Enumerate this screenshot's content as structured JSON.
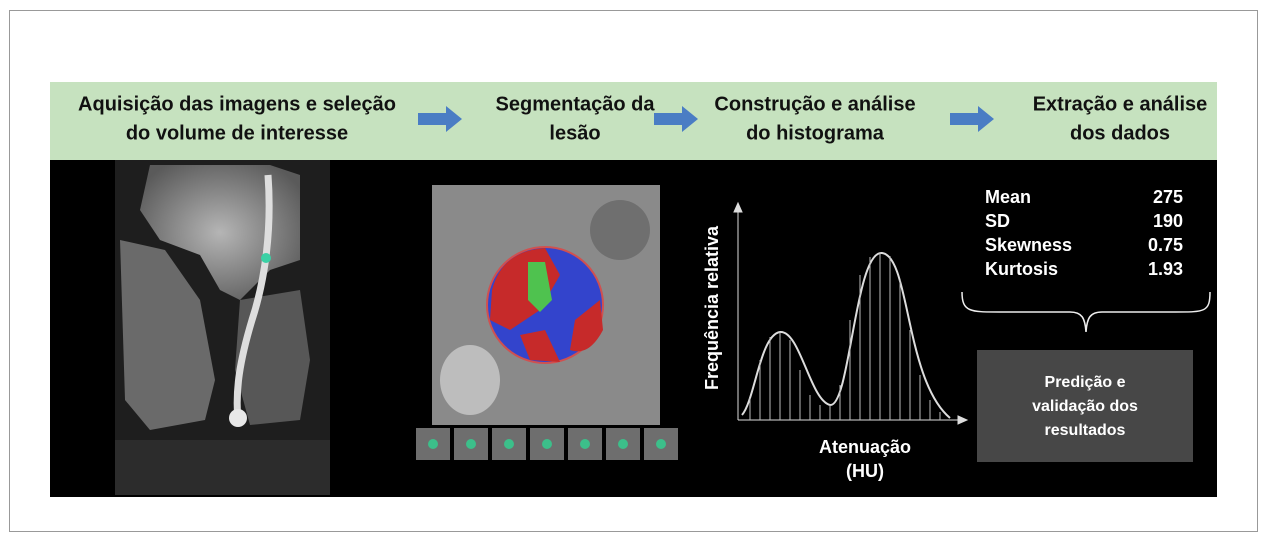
{
  "steps": [
    {
      "lines": [
        "Aquisição das imagens e seleção",
        "do volume de interesse"
      ]
    },
    {
      "lines": [
        "Segmentação da",
        "lesão"
      ]
    },
    {
      "lines": [
        "Construção e análise",
        "do histograma"
      ]
    },
    {
      "lines": [
        "Extração e análise",
        "dos dados"
      ]
    }
  ],
  "histogram": {
    "y_label": "Frequência relativa",
    "x_label": [
      "Atenuação",
      "(HU)"
    ]
  },
  "stats": {
    "rows": [
      [
        "Mean",
        "275"
      ],
      [
        "SD",
        "190"
      ],
      [
        "Skewness",
        "0.75"
      ],
      [
        "Kurtosis",
        "1.93"
      ]
    ]
  },
  "result_box": {
    "lines": [
      "Predição e",
      "validação dos",
      "resultados"
    ]
  }
}
